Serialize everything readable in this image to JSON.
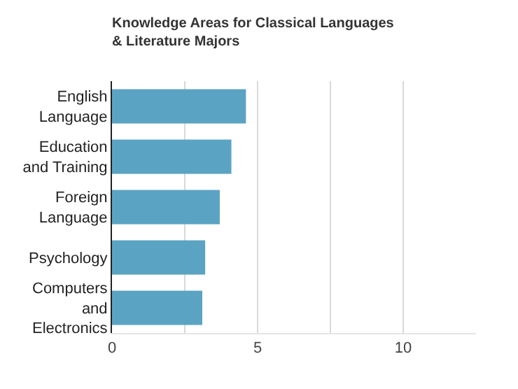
{
  "chart_data": {
    "type": "bar",
    "orientation": "horizontal",
    "title": "Knowledge Areas for Classical Languages & Literature Majors",
    "categories": [
      "English Language",
      "Education and Training",
      "Foreign Language",
      "Psychology",
      "Computers and Electronics"
    ],
    "values": [
      4.6,
      4.1,
      3.7,
      3.2,
      3.1
    ],
    "color": "#5ba3c2",
    "xlim": [
      0,
      12.5
    ],
    "xticks": [
      0,
      {
        "value": 2.5,
        "label": null
      },
      5,
      {
        "value": 7.5,
        "label": null
      },
      10
    ],
    "grid": "x",
    "legend": false
  }
}
